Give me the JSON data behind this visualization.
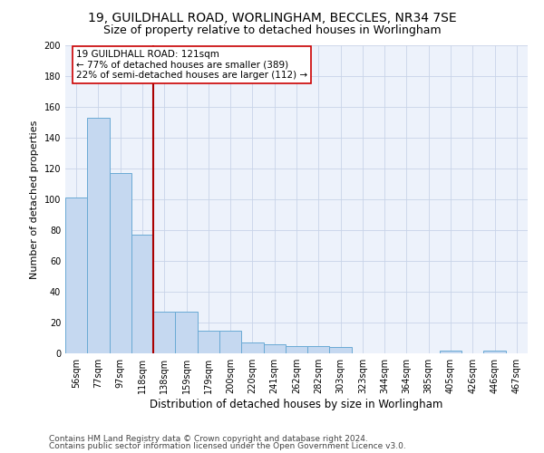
{
  "title1": "19, GUILDHALL ROAD, WORLINGHAM, BECCLES, NR34 7SE",
  "title2": "Size of property relative to detached houses in Worlingham",
  "xlabel": "Distribution of detached houses by size in Worlingham",
  "ylabel": "Number of detached properties",
  "categories": [
    "56sqm",
    "77sqm",
    "97sqm",
    "118sqm",
    "138sqm",
    "159sqm",
    "179sqm",
    "200sqm",
    "220sqm",
    "241sqm",
    "262sqm",
    "282sqm",
    "303sqm",
    "323sqm",
    "344sqm",
    "364sqm",
    "385sqm",
    "405sqm",
    "426sqm",
    "446sqm",
    "467sqm"
  ],
  "values": [
    101,
    153,
    117,
    77,
    27,
    27,
    15,
    15,
    7,
    6,
    5,
    5,
    4,
    0,
    0,
    0,
    0,
    2,
    0,
    2,
    0
  ],
  "bar_color": "#c5d8f0",
  "bar_edge_color": "#6aaad4",
  "vline_color": "#aa0000",
  "annotation_line1": "19 GUILDHALL ROAD: 121sqm",
  "annotation_line2": "← 77% of detached houses are smaller (389)",
  "annotation_line3": "22% of semi-detached houses are larger (112) →",
  "annotation_box_color": "#ffffff",
  "annotation_box_edge": "#cc0000",
  "ylim": [
    0,
    200
  ],
  "yticks": [
    0,
    20,
    40,
    60,
    80,
    100,
    120,
    140,
    160,
    180,
    200
  ],
  "footer1": "Contains HM Land Registry data © Crown copyright and database right 2024.",
  "footer2": "Contains public sector information licensed under the Open Government Licence v3.0.",
  "bg_color": "#edf2fb",
  "grid_color": "#c8d4e8",
  "title1_fontsize": 10,
  "title2_fontsize": 9,
  "xlabel_fontsize": 8.5,
  "ylabel_fontsize": 8,
  "tick_fontsize": 7,
  "annot_fontsize": 7.5,
  "footer_fontsize": 6.5,
  "vline_xindex": 3.5
}
